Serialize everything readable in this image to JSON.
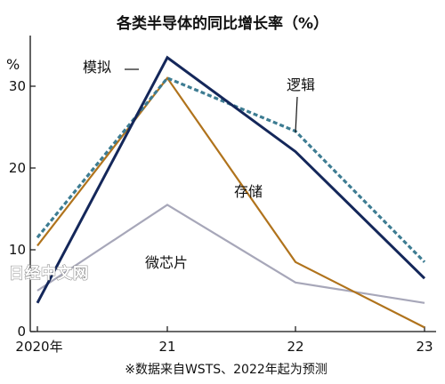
{
  "chart_data": {
    "type": "line",
    "title": "各类半导体的同比增长率（%）",
    "ylabel": "%",
    "x": [
      "2020年",
      "21",
      "22",
      "23"
    ],
    "ylim": [
      0,
      35
    ],
    "yticks": [
      0,
      10,
      20,
      30
    ],
    "grid": false,
    "series": [
      {
        "name": "模拟",
        "values": [
          3.5,
          33.5,
          22,
          6.5
        ],
        "color": "#14275a",
        "dash": false
      },
      {
        "name": "逻辑",
        "values": [
          11.5,
          31,
          24.5,
          8.5
        ],
        "color": "#3d7c92",
        "dash": true
      },
      {
        "name": "存储",
        "values": [
          10.5,
          31,
          8.5,
          0.5
        ],
        "color": "#b0731c",
        "dash": false
      },
      {
        "name": "微芯片",
        "values": [
          5,
          15.5,
          6,
          3.5
        ],
        "color": "#a7a7b9",
        "dash": false
      }
    ],
    "note": "※数据来自WSTS、2022年起为预测"
  },
  "watermark": "日经中文网"
}
